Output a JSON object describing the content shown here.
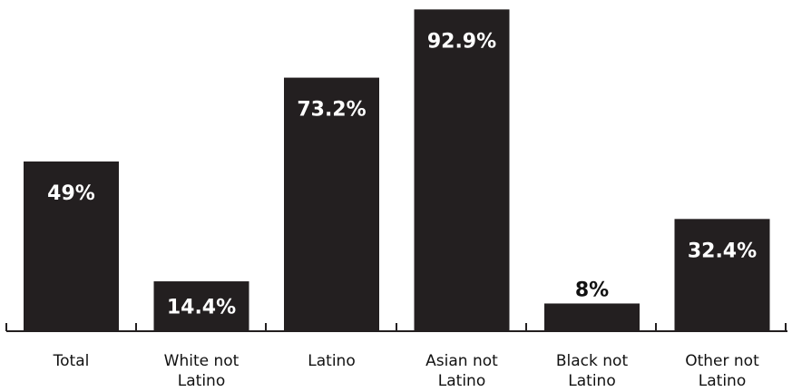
{
  "chart_data": {
    "type": "bar",
    "categories": [
      [
        "Total"
      ],
      [
        "White not",
        "Latino"
      ],
      [
        "Latino"
      ],
      [
        "Asian not",
        "Latino"
      ],
      [
        "Black not",
        "Latino"
      ],
      [
        "Other not",
        "Latino"
      ]
    ],
    "values": [
      49,
      14.4,
      73.2,
      92.9,
      8,
      32.4
    ],
    "data_labels": [
      "49%",
      "14.4%",
      "73.2%",
      "92.9%",
      "8%",
      "32.4%"
    ],
    "ylim": [
      0,
      93
    ],
    "grid": false,
    "legend": "none",
    "bar_color": "#231f20",
    "inside_label_color": "#ffffff",
    "outside_label_color": "#111111"
  }
}
